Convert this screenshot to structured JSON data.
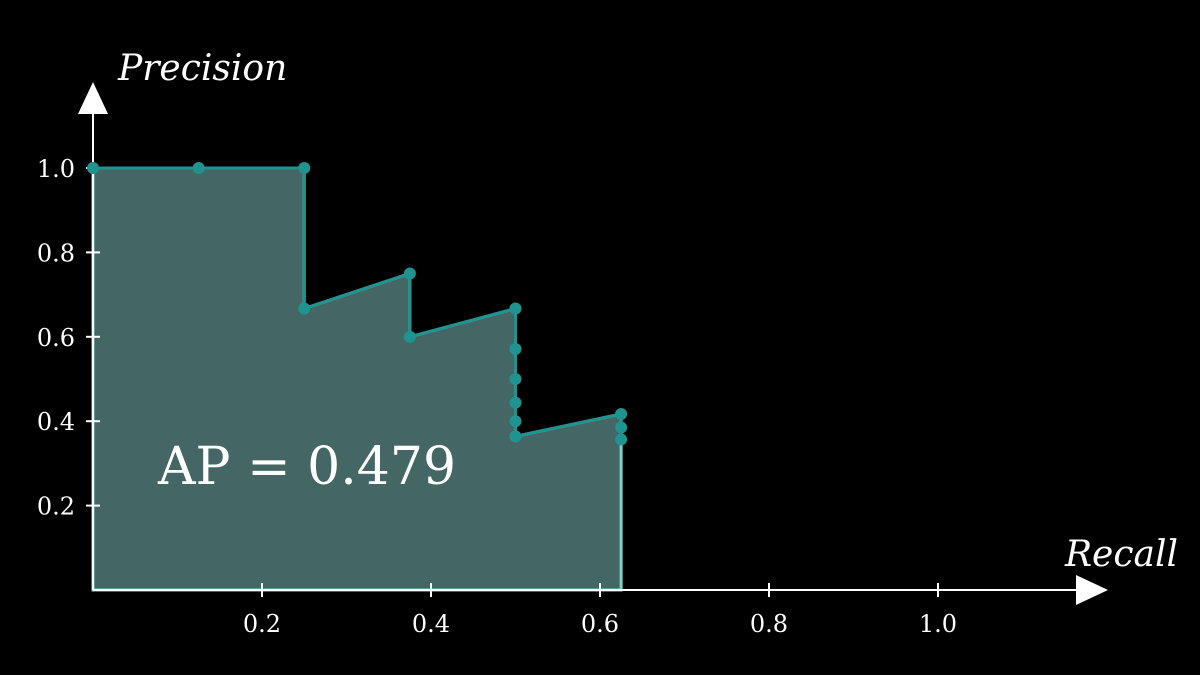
{
  "chart_data": {
    "type": "area",
    "title": "",
    "xlabel": "Recall",
    "ylabel": "Precision",
    "xlim": [
      0,
      1.2
    ],
    "ylim": [
      0,
      1.2
    ],
    "xticks": [
      "0.2",
      "0.4",
      "0.6",
      "0.8",
      "1.0"
    ],
    "yticks": [
      "0.2",
      "0.4",
      "0.6",
      "0.8",
      "1.0"
    ],
    "grid": false,
    "annotation": "AP = 0.479",
    "series": [
      {
        "points": [
          {
            "recall": 0.0,
            "precision": 1.0
          },
          {
            "recall": 0.125,
            "precision": 1.0
          },
          {
            "recall": 0.25,
            "precision": 1.0
          },
          {
            "recall": 0.25,
            "precision": 0.667
          },
          {
            "recall": 0.375,
            "precision": 0.75
          },
          {
            "recall": 0.375,
            "precision": 0.6
          },
          {
            "recall": 0.5,
            "precision": 0.667
          },
          {
            "recall": 0.5,
            "precision": 0.571
          },
          {
            "recall": 0.5,
            "precision": 0.5
          },
          {
            "recall": 0.5,
            "precision": 0.444
          },
          {
            "recall": 0.5,
            "precision": 0.4
          },
          {
            "recall": 0.5,
            "precision": 0.364
          },
          {
            "recall": 0.625,
            "precision": 0.417
          },
          {
            "recall": 0.625,
            "precision": 0.385
          },
          {
            "recall": 0.625,
            "precision": 0.357
          }
        ]
      }
    ],
    "colors": {
      "background": "#000000",
      "axis": "#ffffff",
      "line": "#1f9390",
      "fill": "#446765",
      "fill_edge": "#7ececa",
      "text": "#ffffff"
    }
  }
}
